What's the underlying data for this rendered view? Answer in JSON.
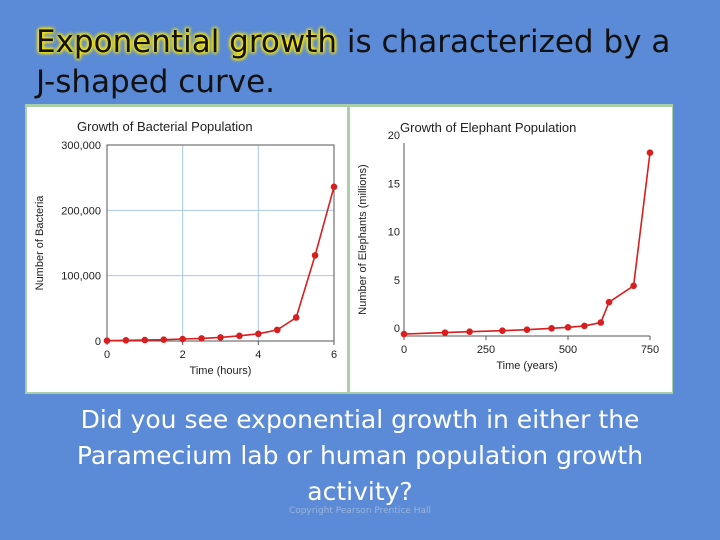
{
  "slide": {
    "title_highlight": "Exponential growth",
    "title_rest": " is characterized by a J-shaped curve.",
    "question": "Did you see exponential growth in either the Paramecium lab or human population growth activity?",
    "watermark": "Copyright Pearson Prentice Hall"
  },
  "colors": {
    "background": "#5b8ad6",
    "frame": "#a9cfa9",
    "series": "#d81e1e",
    "grid": "#a8c8e8",
    "highlight": "#ffe800"
  },
  "chart_data": [
    {
      "type": "line",
      "title": "Growth of Bacterial Population",
      "xlabel": "Time (hours)",
      "ylabel": "Number of Bacteria",
      "xlim": [
        0,
        6
      ],
      "ylim": [
        0,
        300000
      ],
      "x_ticks": [
        0,
        2,
        4,
        6
      ],
      "y_ticks": [
        0,
        100000,
        200000,
        300000
      ],
      "y_tick_labels": [
        "0",
        "100,000",
        "200,000",
        "300,000"
      ],
      "grid": true,
      "series": [
        {
          "x": [
            0,
            0.5,
            1,
            1.5,
            2,
            2.5,
            3,
            3.5,
            4,
            4.5,
            5,
            5.5,
            6
          ],
          "y": [
            500,
            1000,
            1500,
            2000,
            3000,
            4000,
            5500,
            8000,
            11000,
            17000,
            36000,
            131000,
            236000
          ]
        }
      ]
    },
    {
      "type": "line",
      "title": "Growth of Elephant Population",
      "xlabel": "Time (years)",
      "ylabel": "Number of Elephants (millions)",
      "xlim": [
        0,
        750
      ],
      "ylim": [
        0,
        20
      ],
      "x_ticks": [
        0,
        250,
        500,
        750
      ],
      "y_ticks": [
        0,
        5,
        10,
        15,
        20
      ],
      "grid": false,
      "series": [
        {
          "x": [
            0,
            125,
            200,
            300,
            375,
            450,
            500,
            550,
            600,
            625,
            700,
            750
          ],
          "y": [
            0.2,
            0.35,
            0.45,
            0.55,
            0.65,
            0.8,
            0.9,
            1.05,
            1.4,
            3.5,
            5.2,
            19
          ]
        }
      ]
    }
  ]
}
